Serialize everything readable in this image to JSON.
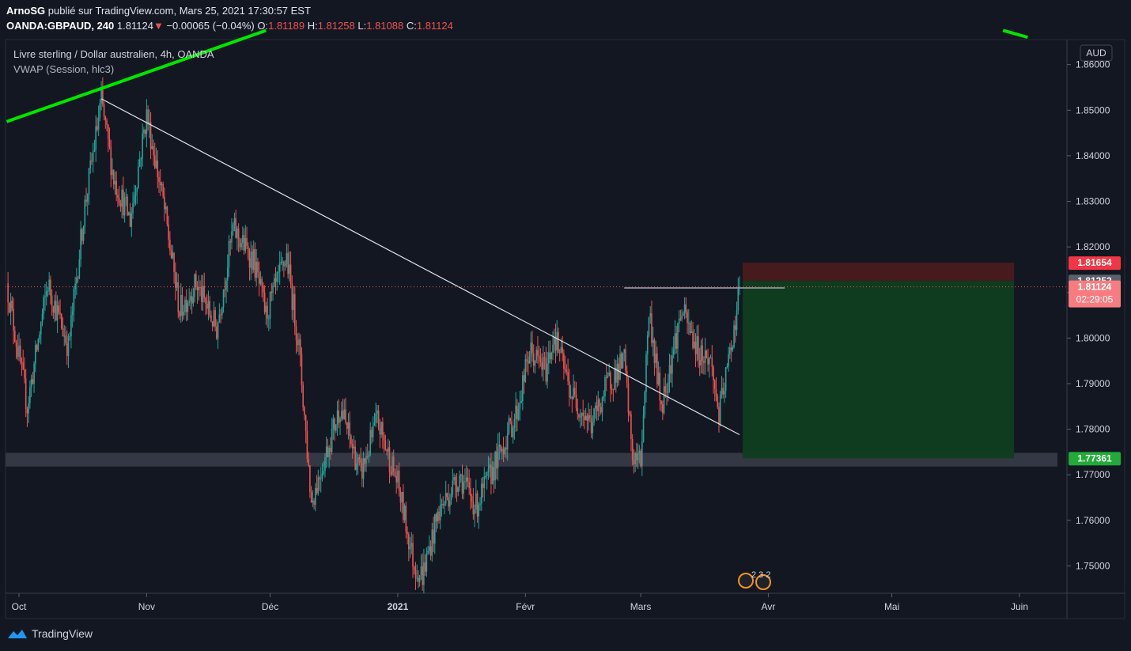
{
  "header": {
    "author": "ArnoSG",
    "published_text": "publié sur TradingView.com, Mars 25, 2021 17:30:57 EST",
    "symbol": "OANDA:GBPAUD, 240",
    "last": "1.81124",
    "change": "−0.00065 (−0.04%)",
    "o_label": "O:",
    "o": "1.81189",
    "h_label": "H:",
    "h": "1.81258",
    "l_label": "L:",
    "l": "1.81088",
    "c_label": "C:",
    "c": "1.81124"
  },
  "legend": {
    "title": "Livre sterling / Dollar australien, 4h, OANDA",
    "indicator": "VWAP (Session, hlc3)"
  },
  "currency_button": "AUD",
  "price_tags": {
    "stop": "1.81654",
    "vwap": "1.81252",
    "last": "1.81124",
    "countdown": "02:29:05",
    "target": "1.77361"
  },
  "events_badge": "2 3 2",
  "footer": {
    "brand": "TradingView"
  },
  "colors": {
    "background": "#131722",
    "up": "#26a69a",
    "down": "#ef5350",
    "trendline": "#00e600",
    "stop_zone": "#4a1a1f",
    "target_zone": "#0f3d1f",
    "support_band": "#3b3e4a"
  },
  "chart_data": {
    "type": "candlestick",
    "title": "Livre sterling / Dollar australien, 4h, OANDA",
    "ylim": [
      1.744,
      1.8655
    ],
    "x_ticks": [
      "Oct",
      "Nov",
      "Déc",
      "2021",
      "Févr",
      "Mars",
      "Avr",
      "Mai",
      "Juin"
    ],
    "y_ticks": [
      "1.86000",
      "1.85000",
      "1.84000",
      "1.83000",
      "1.82000",
      "1.81000",
      "1.80000",
      "1.79000",
      "1.78000",
      "1.77000",
      "1.76000",
      "1.75000"
    ],
    "y_tick_values": [
      1.86,
      1.85,
      1.84,
      1.83,
      1.82,
      1.81,
      1.8,
      1.79,
      1.78,
      1.77,
      1.76,
      1.75
    ],
    "x_tick_dates": [
      "2020-10-01",
      "2020-11-01",
      "2020-12-01",
      "2021-01-01",
      "2021-02-01",
      "2021-03-01",
      "2021-04-01",
      "2021-05-01",
      "2021-06-01"
    ],
    "price_path": [
      {
        "date": "2020-09-28",
        "price": 1.812
      },
      {
        "date": "2020-10-03",
        "price": 1.785
      },
      {
        "date": "2020-10-08",
        "price": 1.812
      },
      {
        "date": "2020-10-13",
        "price": 1.798
      },
      {
        "date": "2020-10-17",
        "price": 1.829
      },
      {
        "date": "2020-10-21",
        "price": 1.852
      },
      {
        "date": "2020-10-24",
        "price": 1.835
      },
      {
        "date": "2020-10-28",
        "price": 1.826
      },
      {
        "date": "2020-11-01",
        "price": 1.849
      },
      {
        "date": "2020-11-05",
        "price": 1.83
      },
      {
        "date": "2020-11-09",
        "price": 1.806
      },
      {
        "date": "2020-11-13",
        "price": 1.812
      },
      {
        "date": "2020-11-18",
        "price": 1.802
      },
      {
        "date": "2020-11-22",
        "price": 1.824
      },
      {
        "date": "2020-11-27",
        "price": 1.817
      },
      {
        "date": "2020-11-30",
        "price": 1.805
      },
      {
        "date": "2020-12-05",
        "price": 1.818
      },
      {
        "date": "2020-12-08",
        "price": 1.798
      },
      {
        "date": "2020-12-11",
        "price": 1.764
      },
      {
        "date": "2020-12-14",
        "price": 1.773
      },
      {
        "date": "2020-12-18",
        "price": 1.785
      },
      {
        "date": "2020-12-23",
        "price": 1.77
      },
      {
        "date": "2020-12-27",
        "price": 1.782
      },
      {
        "date": "2021-01-01",
        "price": 1.768
      },
      {
        "date": "2021-01-05",
        "price": 1.75
      },
      {
        "date": "2021-01-07",
        "price": 1.748
      },
      {
        "date": "2021-01-11",
        "price": 1.762
      },
      {
        "date": "2021-01-16",
        "price": 1.77
      },
      {
        "date": "2021-01-20",
        "price": 1.763
      },
      {
        "date": "2021-01-25",
        "price": 1.773
      },
      {
        "date": "2021-01-30",
        "price": 1.784
      },
      {
        "date": "2021-02-02",
        "price": 1.797
      },
      {
        "date": "2021-02-06",
        "price": 1.793
      },
      {
        "date": "2021-02-08",
        "price": 1.801
      },
      {
        "date": "2021-02-12",
        "price": 1.788
      },
      {
        "date": "2021-02-17",
        "price": 1.781
      },
      {
        "date": "2021-02-21",
        "price": 1.79
      },
      {
        "date": "2021-02-25",
        "price": 1.795
      },
      {
        "date": "2021-02-27",
        "price": 1.774
      },
      {
        "date": "2021-03-01",
        "price": 1.773
      },
      {
        "date": "2021-03-03",
        "price": 1.806
      },
      {
        "date": "2021-03-06",
        "price": 1.785
      },
      {
        "date": "2021-03-09",
        "price": 1.798
      },
      {
        "date": "2021-03-11",
        "price": 1.806
      },
      {
        "date": "2021-03-15",
        "price": 1.797
      },
      {
        "date": "2021-03-18",
        "price": 1.795
      },
      {
        "date": "2021-03-20",
        "price": 1.783
      },
      {
        "date": "2021-03-22",
        "price": 1.793
      },
      {
        "date": "2021-03-24",
        "price": 1.804
      },
      {
        "date": "2021-03-25",
        "price": 1.8112
      }
    ],
    "trendline_green": [
      {
        "date": "2020-09-28",
        "price": 1.8475
      },
      {
        "date": "2020-10-17",
        "price": 1.8535
      },
      {
        "date": "2020-11-30",
        "price": 1.8675
      }
    ],
    "trendline_green_2": [
      {
        "date": "2021-05-28",
        "price": 1.8675
      },
      {
        "date": "2021-06-03",
        "price": 1.866
      }
    ],
    "trendline_white": [
      {
        "date": "2020-10-21",
        "price": 1.8525
      },
      {
        "date": "2021-03-25",
        "price": 1.7788
      }
    ],
    "resistance_line": {
      "from": "2021-02-25",
      "to": "2021-04-05",
      "price": 1.811
    },
    "support_band": {
      "from": "2020-09-28",
      "to": "2021-06-10",
      "price_low": 1.7718,
      "price_high": 1.7748
    },
    "position": {
      "type": "short",
      "entry": 1.81252,
      "stop": 1.81654,
      "target": 1.77361,
      "from": "2021-03-25",
      "to": "2021-05-28"
    },
    "current_price": 1.81124
  }
}
